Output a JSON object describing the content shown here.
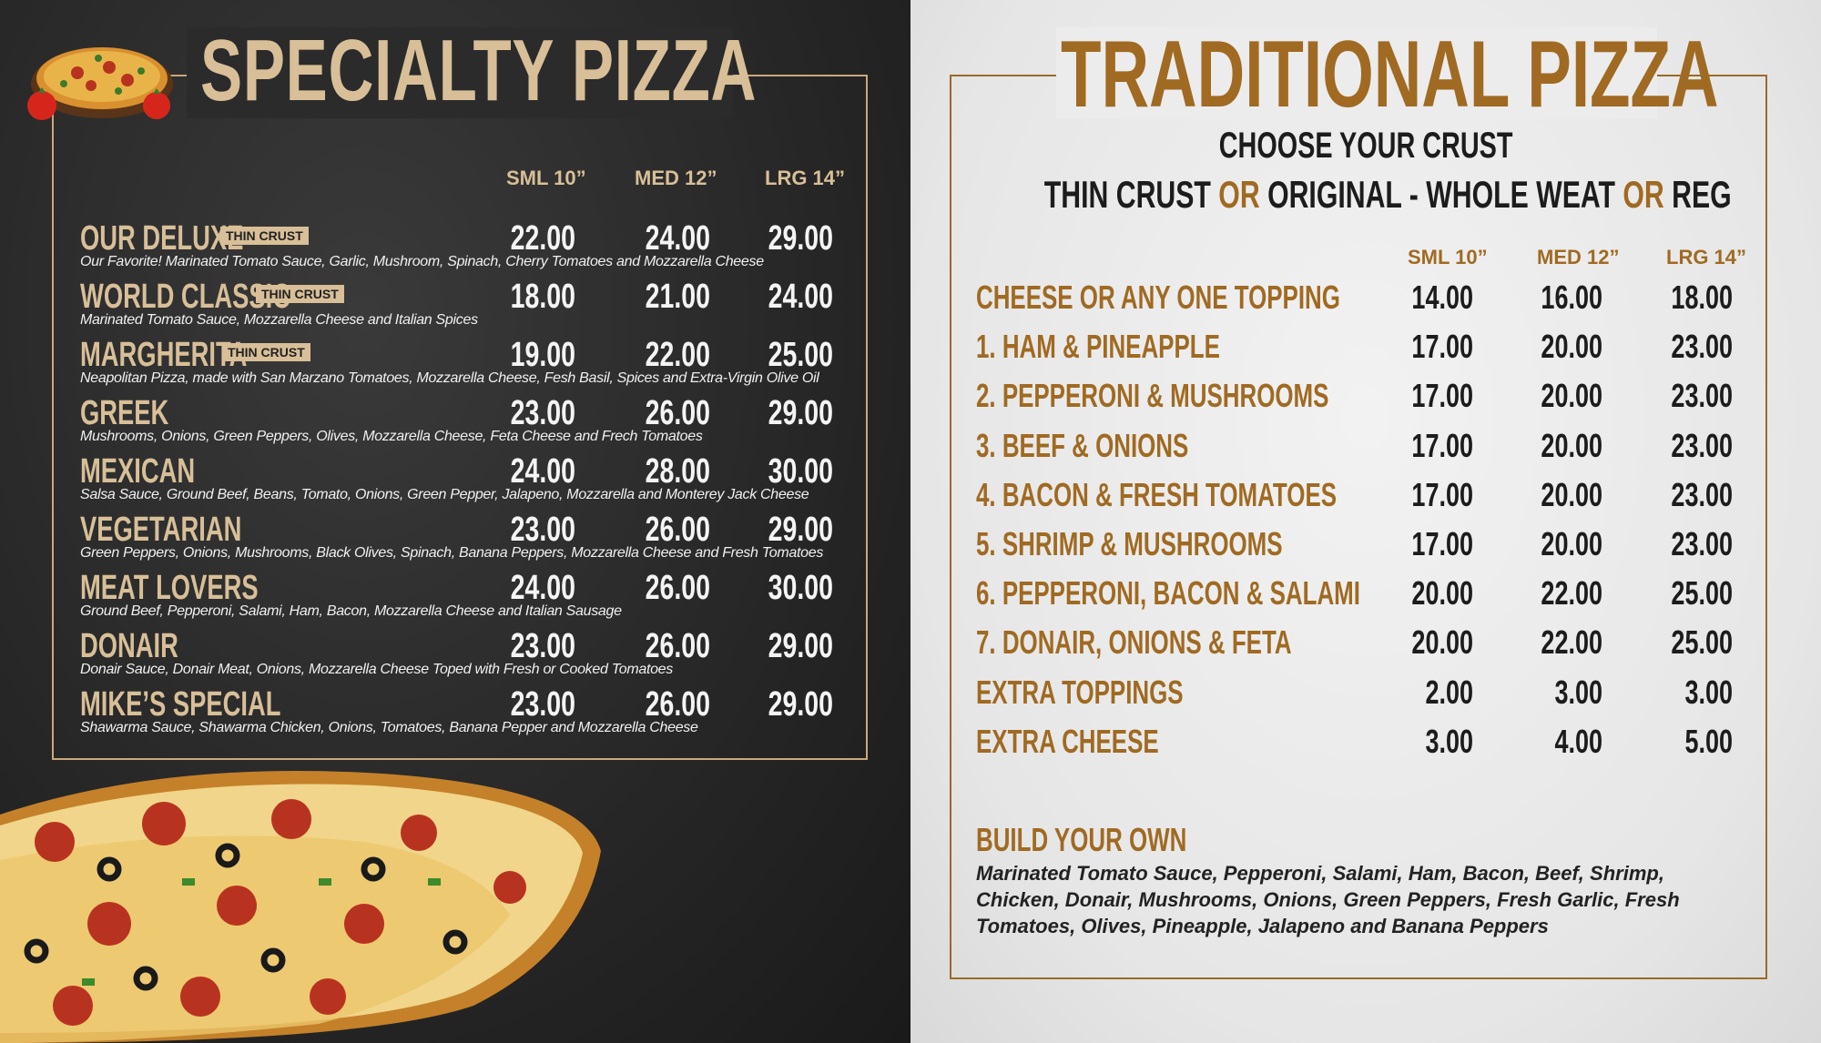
{
  "specialty": {
    "title": "SPECIALTY PIZZA",
    "headers": [
      "SML 10”",
      "MED 12”",
      "LRG 14”"
    ],
    "items": [
      {
        "name": "OUR DELUXE",
        "tag": "THIN CRUST",
        "desc": "Our Favorite! Marinated Tomato Sauce, Garlic, Mushroom, Spinach, Cherry Tomatoes and Mozzarella Cheese",
        "prices": [
          "22.00",
          "24.00",
          "29.00"
        ]
      },
      {
        "name": "WORLD CLASSIC",
        "tag": "THIN CRUST",
        "desc": "Marinated Tomato Sauce, Mozzarella Cheese and Italian Spices",
        "prices": [
          "18.00",
          "21.00",
          "24.00"
        ]
      },
      {
        "name": "MARGHERITA",
        "tag": "THIN CRUST",
        "desc": "Neapolitan Pizza, made with San Marzano Tomatoes, Mozzarella Cheese, Fesh Basil, Spices and Extra-Virgin Olive Oil",
        "prices": [
          "19.00",
          "22.00",
          "25.00"
        ]
      },
      {
        "name": "GREEK",
        "tag": "",
        "desc": "Mushrooms, Onions, Green Peppers, Olives, Mozzarella Cheese, Feta Cheese and Frech Tomatoes",
        "prices": [
          "23.00",
          "26.00",
          "29.00"
        ]
      },
      {
        "name": "MEXICAN",
        "tag": "",
        "desc": "Salsa Sauce, Ground Beef, Beans, Tomato, Onions, Green Pepper, Jalapeno, Mozzarella and Monterey Jack Cheese",
        "prices": [
          "24.00",
          "28.00",
          "30.00"
        ]
      },
      {
        "name": "VEGETARIAN",
        "tag": "",
        "desc": "Green Peppers, Onions, Mushrooms, Black Olives, Spinach, Banana Peppers, Mozzarella Cheese and Fresh Tomatoes",
        "prices": [
          "23.00",
          "26.00",
          "29.00"
        ]
      },
      {
        "name": "MEAT LOVERS",
        "tag": "",
        "desc": "Ground Beef, Pepperoni, Salami, Ham, Bacon, Mozzarella Cheese and Italian Sausage",
        "prices": [
          "24.00",
          "26.00",
          "30.00"
        ]
      },
      {
        "name": "DONAIR",
        "tag": "",
        "desc": "Donair Sauce, Donair Meat, Onions, Mozzarella Cheese Toped with Fresh or Cooked Tomatoes",
        "prices": [
          "23.00",
          "26.00",
          "29.00"
        ]
      },
      {
        "name": "MIKE’S SPECIAL",
        "tag": "",
        "desc": "Shawarma Sauce, Shawarma Chicken, Onions, Tomatoes, Banana Pepper and Mozzarella Cheese",
        "prices": [
          "23.00",
          "26.00",
          "29.00"
        ]
      }
    ]
  },
  "traditional": {
    "title": "TRADITIONAL PIZZA",
    "choose": "CHOOSE YOUR CRUST",
    "crust": {
      "a": "THIN CRUST",
      "or1": "OR",
      "b": "ORIGINAL - WHOLE WEAT",
      "or2": "OR",
      "c": "REG"
    },
    "headers": [
      "SML 10”",
      "MED 12”",
      "LRG 14”"
    ],
    "items": [
      {
        "name": "CHEESE OR ANY ONE TOPPING",
        "prices": [
          "14.00",
          "16.00",
          "18.00"
        ]
      },
      {
        "name": "1.  HAM & PINEAPPLE",
        "prices": [
          "17.00",
          "20.00",
          "23.00"
        ]
      },
      {
        "name": "2.  PEPPERONI & MUSHROOMS",
        "prices": [
          "17.00",
          "20.00",
          "23.00"
        ]
      },
      {
        "name": "3.  BEEF & ONIONS",
        "prices": [
          "17.00",
          "20.00",
          "23.00"
        ]
      },
      {
        "name": "4.  BACON & FRESH TOMATOES",
        "prices": [
          "17.00",
          "20.00",
          "23.00"
        ]
      },
      {
        "name": "5.  SHRIMP & MUSHROOMS",
        "prices": [
          "17.00",
          "20.00",
          "23.00"
        ]
      },
      {
        "name": "6.  PEPPERONI, BACON & SALAMI",
        "prices": [
          "20.00",
          "22.00",
          "25.00"
        ]
      },
      {
        "name": "7.  DONAIR, ONIONS & FETA",
        "prices": [
          "20.00",
          "22.00",
          "25.00"
        ]
      },
      {
        "name": "EXTRA TOPPINGS",
        "prices": [
          "2.00",
          "3.00",
          "3.00"
        ]
      },
      {
        "name": "EXTRA CHEESE",
        "prices": [
          "3.00",
          "4.00",
          "5.00"
        ]
      }
    ],
    "build_title": "BUILD YOUR OWN",
    "build_text": "Marinated Tomato Sauce, Pepperoni, Salami, Ham, Bacon, Beef, Shrimp, Chicken, Donair, Mushrooms, Onions, Green Peppers, Fresh Garlic, Fresh Tomatoes, Olives, Pineapple, Jalapeno and Banana Peppers"
  }
}
